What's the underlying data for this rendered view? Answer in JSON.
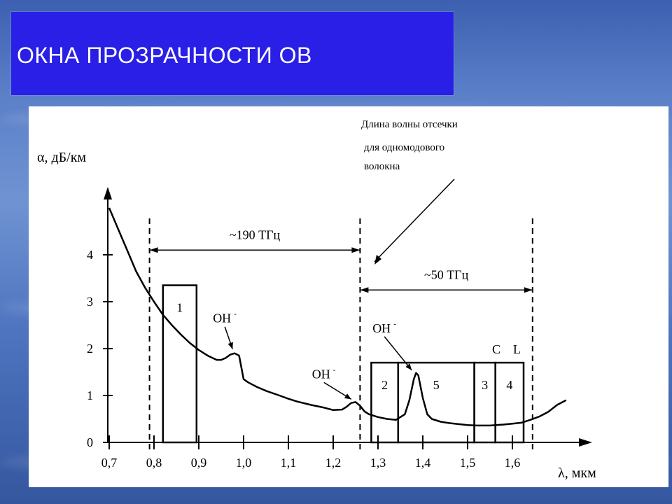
{
  "slide": {
    "title": "ОКНА ПРОЗРАЧНОСТИ ОВ"
  },
  "colors": {
    "title_bg": "#2a1fe6",
    "ink": "#000000",
    "panel": "#ffffff"
  },
  "chart_data": {
    "type": "line",
    "ylabel": "α, дБ/км",
    "xlabel": "λ, мкм",
    "x_ticks": [
      "0,7",
      "0,8",
      "0,9",
      "1,0",
      "1,1",
      "1,2",
      "1,3",
      "1,4",
      "1,5",
      "1,6"
    ],
    "y_ticks": [
      "0",
      "1",
      "2",
      "3",
      "4"
    ],
    "xlim": [
      0.7,
      1.72
    ],
    "ylim": [
      0,
      5
    ],
    "series": [
      {
        "x": [
          0.7,
          0.72,
          0.74,
          0.76,
          0.78,
          0.8,
          0.82,
          0.84,
          0.86,
          0.88,
          0.9,
          0.92,
          0.94,
          0.95,
          0.96,
          0.97,
          0.98,
          0.99,
          1.0,
          1.01,
          1.03,
          1.05,
          1.08,
          1.1,
          1.12,
          1.15,
          1.18,
          1.2,
          1.22,
          1.23,
          1.24,
          1.25,
          1.26,
          1.27,
          1.28,
          1.3,
          1.32,
          1.34,
          1.36,
          1.37,
          1.38,
          1.385,
          1.39,
          1.4,
          1.41,
          1.42,
          1.44,
          1.46,
          1.5,
          1.52,
          1.55,
          1.58,
          1.6,
          1.62,
          1.64,
          1.66,
          1.68,
          1.7,
          1.72
        ],
        "y": [
          5.0,
          4.55,
          4.1,
          3.65,
          3.3,
          3.0,
          2.72,
          2.5,
          2.3,
          2.12,
          1.97,
          1.85,
          1.76,
          1.76,
          1.8,
          1.87,
          1.9,
          1.85,
          1.35,
          1.28,
          1.18,
          1.1,
          1.0,
          0.93,
          0.87,
          0.8,
          0.74,
          0.69,
          0.7,
          0.76,
          0.84,
          0.86,
          0.78,
          0.66,
          0.6,
          0.54,
          0.5,
          0.48,
          0.6,
          0.9,
          1.35,
          1.48,
          1.43,
          0.95,
          0.6,
          0.5,
          0.44,
          0.41,
          0.37,
          0.36,
          0.36,
          0.38,
          0.4,
          0.42,
          0.48,
          0.55,
          0.65,
          0.8,
          0.9
        ]
      }
    ],
    "windows": [
      {
        "label": "1",
        "x0": 0.82,
        "x1": 0.895,
        "y": 3.35
      },
      {
        "label": "2",
        "x0": 1.285,
        "x1": 1.345,
        "y": 1.7
      },
      {
        "label": "5",
        "x0": 1.345,
        "x1": 1.515,
        "y": 1.7
      },
      {
        "label": "3",
        "x0": 1.515,
        "x1": 1.562,
        "y": 1.7
      },
      {
        "label": "4",
        "x0": 1.562,
        "x1": 1.625,
        "y": 1.7
      }
    ],
    "band_labels": {
      "c": "C",
      "l": "L"
    },
    "dashed_lines_x": [
      0.79,
      1.26,
      1.645
    ],
    "spans": [
      {
        "label": "~190 ТГц",
        "x0": 0.79,
        "x1": 1.26,
        "y": 4.1
      },
      {
        "label": "~50 ТГц",
        "x0": 1.26,
        "x1": 1.645,
        "y": 3.25
      }
    ],
    "annotations": [
      {
        "text": "ОН",
        "sup": "-",
        "at": [
          0.98,
          1.9
        ]
      },
      {
        "text": "ОН",
        "sup": "-",
        "at": [
          1.245,
          0.83
        ]
      },
      {
        "text": "ОН",
        "sup": "-",
        "at": [
          1.38,
          1.45
        ]
      }
    ],
    "cutoff_note": [
      "Длина волны отсечки",
      "для одномодового",
      "волокна"
    ]
  }
}
